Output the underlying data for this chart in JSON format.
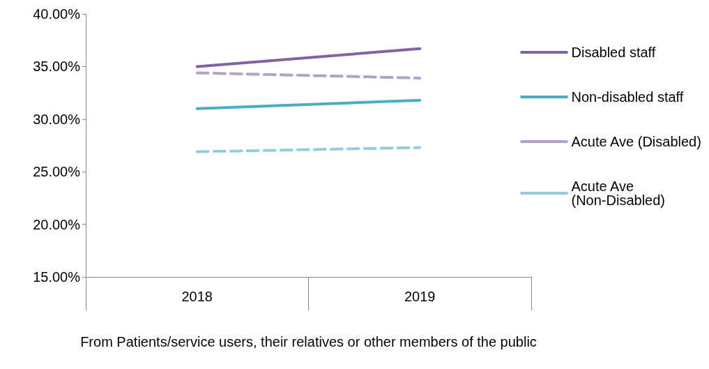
{
  "chart_data": {
    "type": "line",
    "categories": [
      "2018",
      "2019"
    ],
    "xlabel": "From Patients/service users, their relatives or other members of the public",
    "series": [
      {
        "name": "Disabled staff",
        "color": "#8064a2",
        "line_style": "solid",
        "values": [
          35.0,
          36.7
        ]
      },
      {
        "name": "Non-disabled staff",
        "color": "#4bacc6",
        "line_style": "solid",
        "values": [
          31.0,
          31.8
        ]
      },
      {
        "name": "Acute Ave (Disabled)",
        "color": "#b3a2c7",
        "line_style": "dashed",
        "values": [
          34.4,
          33.9
        ]
      },
      {
        "name": "Acute Ave (Non-Disabled)",
        "color": "#93cddd",
        "line_style": "dashed",
        "values": [
          26.9,
          27.3
        ]
      }
    ],
    "ylim": [
      15,
      40
    ],
    "yticks": [
      {
        "value": 15,
        "label": "15.00%"
      },
      {
        "value": 20,
        "label": "20.00%"
      },
      {
        "value": 25,
        "label": "25.00%"
      },
      {
        "value": 30,
        "label": "30.00%"
      },
      {
        "value": 35,
        "label": "35.00%"
      },
      {
        "value": 40,
        "label": "40.00%"
      }
    ],
    "grid": false,
    "legend": "right",
    "marker": "none"
  }
}
